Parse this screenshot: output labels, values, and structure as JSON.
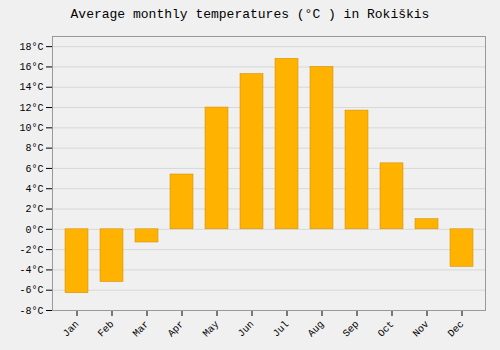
{
  "chart_data": {
    "type": "bar",
    "title": "Average monthly temperatures (°C ) in Rokiškis",
    "categories": [
      "Jan",
      "Feb",
      "Mar",
      "Apr",
      "May",
      "Jun",
      "Jul",
      "Aug",
      "Sep",
      "Oct",
      "Nov",
      "Dec"
    ],
    "values": [
      -6.3,
      -5.2,
      -1.3,
      5.4,
      12.0,
      15.3,
      16.8,
      16.0,
      11.7,
      6.5,
      1.0,
      -3.7
    ],
    "color": "#FFB300",
    "ylim": [
      -8,
      19
    ],
    "yticks": [
      {
        "value": -8,
        "label": "-8°C"
      },
      {
        "value": -6,
        "label": "-6°C"
      },
      {
        "value": -4,
        "label": "-4°C"
      },
      {
        "value": -2,
        "label": "-2°C"
      },
      {
        "value": 0,
        "label": "0°C"
      },
      {
        "value": 2,
        "label": "2°C"
      },
      {
        "value": 4,
        "label": "4°C"
      },
      {
        "value": 6,
        "label": "6°C"
      },
      {
        "value": 8,
        "label": "8°C"
      },
      {
        "value": 10,
        "label": "10°C"
      },
      {
        "value": 12,
        "label": "12°C"
      },
      {
        "value": 14,
        "label": "14°C"
      },
      {
        "value": 16,
        "label": "16°C"
      },
      {
        "value": 18,
        "label": "18°C"
      }
    ],
    "grid": true
  }
}
